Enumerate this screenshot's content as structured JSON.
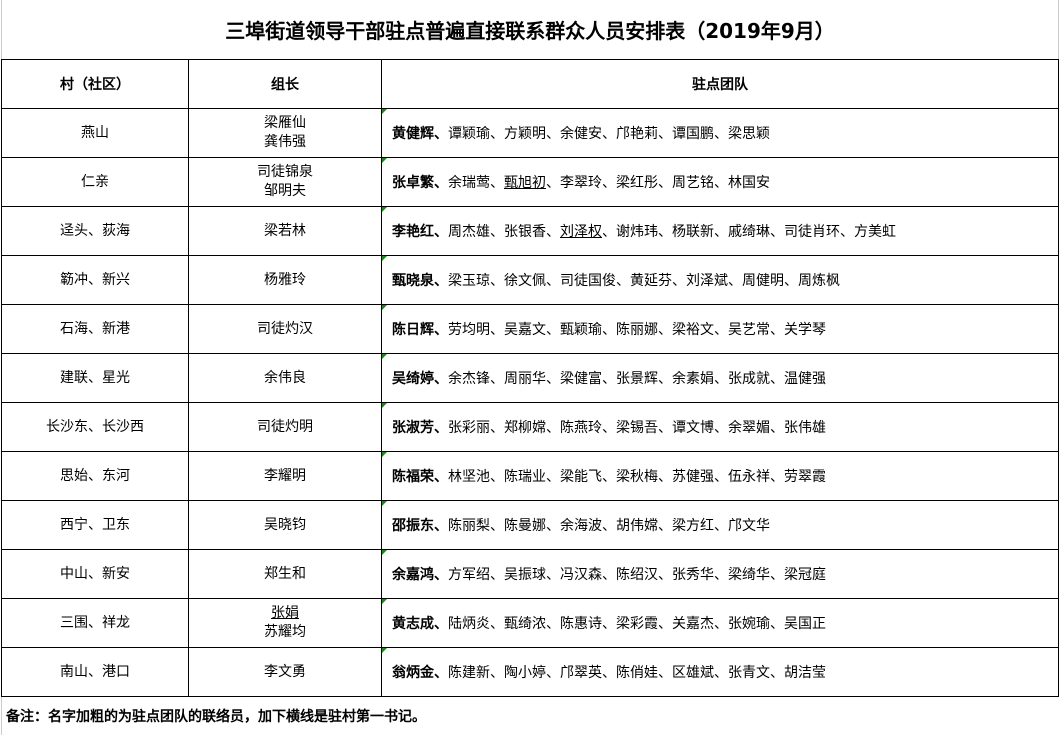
{
  "title": "三埠街道领导干部驻点普遍直接联系群众人员安排表（2019年9月）",
  "headers": {
    "village": "村（社区）",
    "leader": "组长",
    "team": "驻点团队"
  },
  "separator": "、",
  "rows": [
    {
      "village": "燕山",
      "leaders": [
        {
          "name": "梁雁仙",
          "underline": false
        },
        {
          "name": "龚伟强",
          "underline": false
        }
      ],
      "team": [
        {
          "name": "黄健辉",
          "bold": true
        },
        {
          "name": "谭颖瑜"
        },
        {
          "name": "方颖明"
        },
        {
          "name": "余健安"
        },
        {
          "name": "邝艳莉"
        },
        {
          "name": "谭国鹏"
        },
        {
          "name": "梁思颖"
        }
      ]
    },
    {
      "village": "仁亲",
      "leaders": [
        {
          "name": "司徒锦泉",
          "underline": false
        },
        {
          "name": "邹明夫",
          "underline": false
        }
      ],
      "team": [
        {
          "name": "张卓繁",
          "bold": true
        },
        {
          "name": "余瑞莺"
        },
        {
          "name": "甄旭初",
          "underline": true
        },
        {
          "name": "李翠玲"
        },
        {
          "name": "梁红彤"
        },
        {
          "name": "周艺铭"
        },
        {
          "name": "林国安"
        }
      ]
    },
    {
      "village": "迳头、荻海",
      "leaders": [
        {
          "name": "梁若林",
          "underline": false
        }
      ],
      "team": [
        {
          "name": "李艳红",
          "bold": true
        },
        {
          "name": "周杰雄"
        },
        {
          "name": "张银香"
        },
        {
          "name": "刘泽权",
          "underline": true
        },
        {
          "name": "谢炜玮"
        },
        {
          "name": "杨联新"
        },
        {
          "name": "戚绮琳"
        },
        {
          "name": "司徒肖环"
        },
        {
          "name": "方美虹"
        }
      ]
    },
    {
      "village": "簕冲、新兴",
      "leaders": [
        {
          "name": "杨雅玲",
          "underline": false
        }
      ],
      "team": [
        {
          "name": "甄晓泉",
          "bold": true
        },
        {
          "name": "梁玉琼"
        },
        {
          "name": "徐文佩"
        },
        {
          "name": "司徒国俊"
        },
        {
          "name": "黄延芬"
        },
        {
          "name": "刘泽斌"
        },
        {
          "name": "周健明"
        },
        {
          "name": "周炼枫"
        }
      ]
    },
    {
      "village": "石海、新港",
      "leaders": [
        {
          "name": "司徒灼汉",
          "underline": false
        }
      ],
      "team": [
        {
          "name": "陈日辉",
          "bold": true
        },
        {
          "name": "劳均明"
        },
        {
          "name": "吴嘉文"
        },
        {
          "name": "甄颖瑜"
        },
        {
          "name": "陈丽娜"
        },
        {
          "name": "梁裕文"
        },
        {
          "name": "吴艺常"
        },
        {
          "name": "关学琴"
        }
      ]
    },
    {
      "village": "建联、星光",
      "leaders": [
        {
          "name": "余伟良",
          "underline": false
        }
      ],
      "team": [
        {
          "name": "吴绮婷",
          "bold": true
        },
        {
          "name": "余杰锋"
        },
        {
          "name": "周丽华"
        },
        {
          "name": "梁健富"
        },
        {
          "name": "张景辉"
        },
        {
          "name": "余素娟"
        },
        {
          "name": "张成就"
        },
        {
          "name": "温健强"
        }
      ]
    },
    {
      "village": "长沙东、长沙西",
      "leaders": [
        {
          "name": "司徒灼明",
          "underline": false
        }
      ],
      "team": [
        {
          "name": "张淑芳",
          "bold": true
        },
        {
          "name": "张彩丽"
        },
        {
          "name": "郑柳嫦"
        },
        {
          "name": "陈燕玲"
        },
        {
          "name": "梁锡吾"
        },
        {
          "name": "谭文博"
        },
        {
          "name": "余翠媚"
        },
        {
          "name": "张伟雄"
        }
      ]
    },
    {
      "village": "思始、东河",
      "leaders": [
        {
          "name": "李耀明",
          "underline": false
        }
      ],
      "team": [
        {
          "name": "陈福荣",
          "bold": true
        },
        {
          "name": "林坚池"
        },
        {
          "name": "陈瑞业"
        },
        {
          "name": "梁能飞"
        },
        {
          "name": "梁秋梅"
        },
        {
          "name": "苏健强"
        },
        {
          "name": "伍永祥"
        },
        {
          "name": "劳翠霞"
        }
      ]
    },
    {
      "village": "西宁、卫东",
      "leaders": [
        {
          "name": "吴晓钧",
          "underline": false
        }
      ],
      "team": [
        {
          "name": "邵振东",
          "bold": true
        },
        {
          "name": "陈丽梨"
        },
        {
          "name": "陈曼娜"
        },
        {
          "name": "余海波"
        },
        {
          "name": "胡伟嫦"
        },
        {
          "name": "梁方红"
        },
        {
          "name": "邝文华"
        }
      ]
    },
    {
      "village": "中山、新安",
      "leaders": [
        {
          "name": "郑生和",
          "underline": false
        }
      ],
      "team": [
        {
          "name": "余嘉鸿",
          "bold": true
        },
        {
          "name": "方军绍"
        },
        {
          "name": "吴振球"
        },
        {
          "name": "冯汉森"
        },
        {
          "name": "陈绍汉"
        },
        {
          "name": "张秀华"
        },
        {
          "name": "梁绮华"
        },
        {
          "name": "梁冠庭"
        }
      ]
    },
    {
      "village": "三围、祥龙",
      "leaders": [
        {
          "name": "张娟",
          "underline": true
        },
        {
          "name": "苏耀均",
          "underline": false
        }
      ],
      "team": [
        {
          "name": "黄志成",
          "bold": true
        },
        {
          "name": "陆炳炎"
        },
        {
          "name": "甄绮浓"
        },
        {
          "name": "陈惠诗"
        },
        {
          "name": "梁彩霞"
        },
        {
          "name": "关嘉杰"
        },
        {
          "name": "张婉瑜"
        },
        {
          "name": "吴国正"
        }
      ]
    },
    {
      "village": "南山、港口",
      "leaders": [
        {
          "name": "李文勇",
          "underline": false
        }
      ],
      "team": [
        {
          "name": "翁炳金",
          "bold": true
        },
        {
          "name": "陈建新"
        },
        {
          "name": "陶小婷"
        },
        {
          "name": "邝翠英"
        },
        {
          "name": "陈俏娃"
        },
        {
          "name": "区雄斌"
        },
        {
          "name": "张青文"
        },
        {
          "name": "胡洁莹"
        }
      ]
    }
  ],
  "note": "备注：名字加粗的为驻点团队的联络员，加下横线是驻村第一书记。",
  "colors": {
    "grid": "#000000",
    "cell_marker": "#1a8a1a"
  }
}
